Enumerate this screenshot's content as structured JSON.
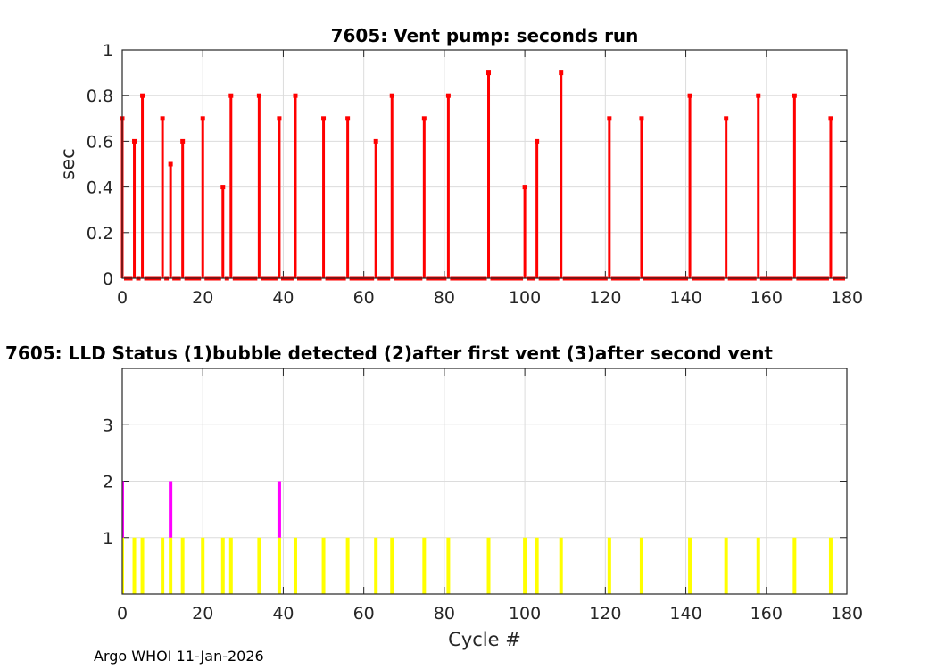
{
  "chart_data": [
    {
      "type": "stem",
      "title": "7605: Vent pump: seconds run",
      "xlabel": "",
      "ylabel": "sec",
      "xlim": [
        0,
        180
      ],
      "ylim": [
        0,
        1
      ],
      "xticks": [
        "0",
        "20",
        "40",
        "60",
        "80",
        "100",
        "120",
        "140",
        "160",
        "180"
      ],
      "yticks": [
        "0",
        "0.2",
        "0.4",
        "0.6",
        "0.8",
        "1"
      ],
      "grid": true,
      "color": "#ff0000",
      "cycle_range": [
        0,
        179
      ],
      "default_value": 0,
      "nonzero": [
        {
          "x": 0,
          "y": 0.7
        },
        {
          "x": 3,
          "y": 0.6
        },
        {
          "x": 5,
          "y": 0.8
        },
        {
          "x": 10,
          "y": 0.7
        },
        {
          "x": 12,
          "y": 0.5
        },
        {
          "x": 15,
          "y": 0.6
        },
        {
          "x": 20,
          "y": 0.7
        },
        {
          "x": 25,
          "y": 0.4
        },
        {
          "x": 27,
          "y": 0.8
        },
        {
          "x": 34,
          "y": 0.8
        },
        {
          "x": 39,
          "y": 0.7
        },
        {
          "x": 43,
          "y": 0.8
        },
        {
          "x": 50,
          "y": 0.7
        },
        {
          "x": 56,
          "y": 0.7
        },
        {
          "x": 63,
          "y": 0.6
        },
        {
          "x": 67,
          "y": 0.8
        },
        {
          "x": 75,
          "y": 0.7
        },
        {
          "x": 81,
          "y": 0.8
        },
        {
          "x": 91,
          "y": 0.9
        },
        {
          "x": 100,
          "y": 0.4
        },
        {
          "x": 103,
          "y": 0.6
        },
        {
          "x": 109,
          "y": 0.9
        },
        {
          "x": 121,
          "y": 0.7
        },
        {
          "x": 129,
          "y": 0.7
        },
        {
          "x": 141,
          "y": 0.8
        },
        {
          "x": 150,
          "y": 0.7
        },
        {
          "x": 158,
          "y": 0.8
        },
        {
          "x": 167,
          "y": 0.8
        },
        {
          "x": 176,
          "y": 0.7
        }
      ]
    },
    {
      "type": "bar",
      "title": "7605: LLD Status   (1)bubble detected   (2)after first vent  (3)after second vent",
      "xlabel": "Cycle #",
      "ylabel": "",
      "xlim": [
        0,
        180
      ],
      "ylim": [
        0,
        4
      ],
      "xticks": [
        "0",
        "20",
        "40",
        "60",
        "80",
        "100",
        "120",
        "140",
        "160",
        "180"
      ],
      "yticks": [
        "1",
        "2",
        "3"
      ],
      "grid": true,
      "series": [
        {
          "name": "(1)bubble detected",
          "level": 1,
          "color": "#ffff00",
          "cycles": [
            0,
            3,
            5,
            10,
            12,
            15,
            20,
            25,
            27,
            34,
            39,
            43,
            50,
            56,
            63,
            67,
            75,
            81,
            91,
            100,
            103,
            109,
            121,
            129,
            141,
            150,
            158,
            167,
            176
          ]
        },
        {
          "name": "(2)after first vent",
          "level": 2,
          "color": "#ff00ff",
          "cycles": [
            0,
            12,
            39
          ]
        }
      ]
    }
  ],
  "footer": "Argo WHOI 11-Jan-2026"
}
